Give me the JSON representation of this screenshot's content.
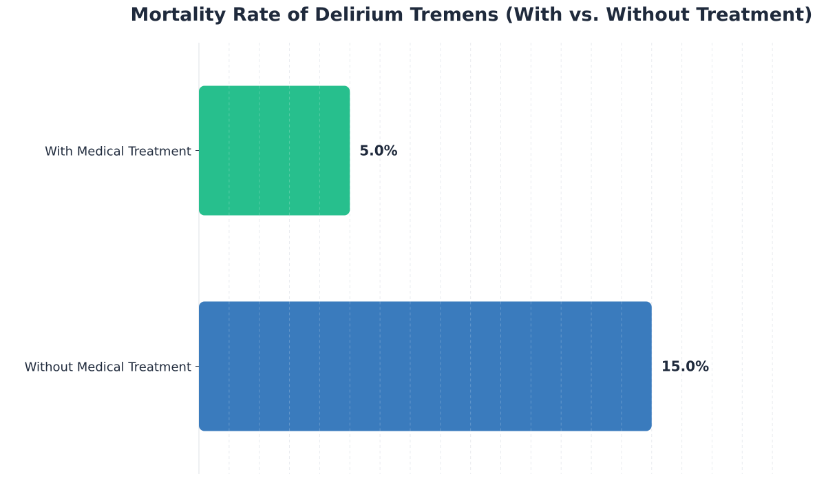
{
  "chart_data": {
    "type": "bar",
    "orientation": "horizontal",
    "title": "Mortality Rate of Delirium Tremens (With vs. Without Treatment)",
    "xlabel": "",
    "ylabel": "",
    "categories": [
      "With Medical Treatment",
      "Without Medical Treatment"
    ],
    "values": [
      5.0,
      15.0
    ],
    "value_labels": [
      "5.0%",
      "15.0%"
    ],
    "colors": [
      "#27bf8d",
      "#3a7bbd"
    ],
    "xlim": [
      0,
      20
    ],
    "grid": true,
    "grid_axis": "x",
    "legend": "none"
  }
}
